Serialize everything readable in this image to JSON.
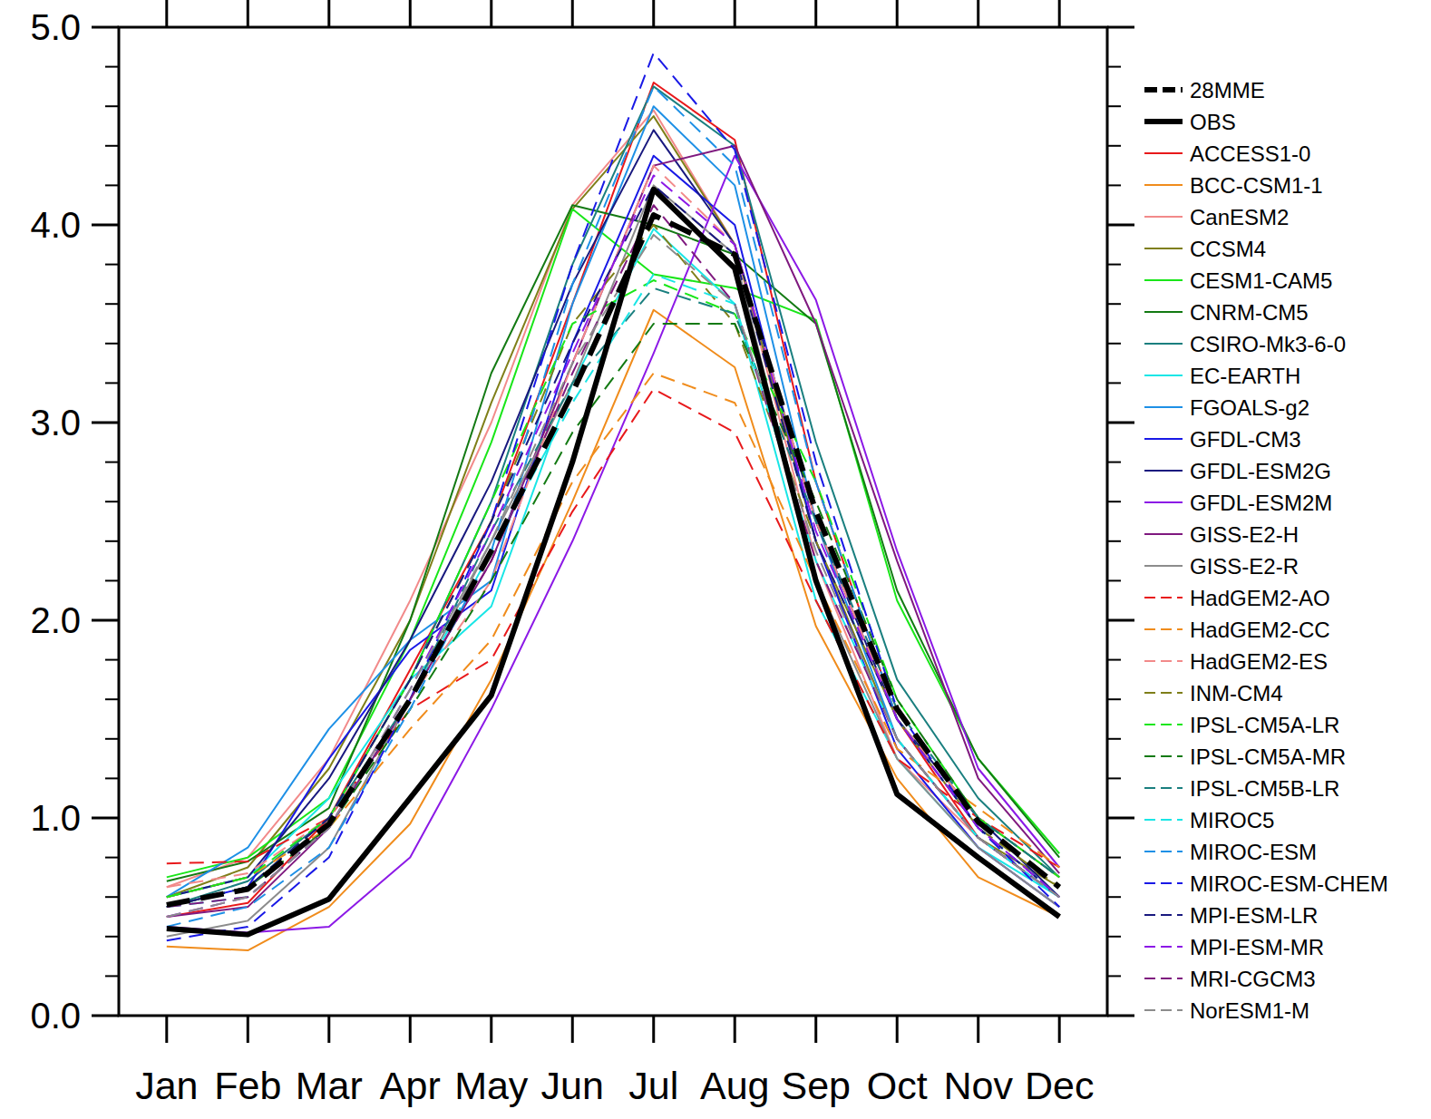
{
  "chart_data": {
    "type": "line",
    "legend": "right",
    "categories": [
      "Jan",
      "Feb",
      "Mar",
      "Apr",
      "May",
      "Jun",
      "Jul",
      "Aug",
      "Sep",
      "Oct",
      "Nov",
      "Dec"
    ],
    "ylim": [
      0,
      5
    ],
    "yticks": [
      {
        "value": 0,
        "label": "0.0"
      },
      {
        "value": 1,
        "label": "1.0"
      },
      {
        "value": 2,
        "label": "2.0"
      },
      {
        "value": 3,
        "label": "3.0"
      },
      {
        "value": 4,
        "label": "4.0"
      },
      {
        "value": 5,
        "label": "5.0"
      }
    ],
    "series": [
      {
        "name": "28MME",
        "color": "#000000",
        "line_style": "dashed",
        "values": [
          0.56,
          0.64,
          0.97,
          1.6,
          2.35,
          3.15,
          4.05,
          3.85,
          2.55,
          1.55,
          0.98,
          0.65
        ]
      },
      {
        "name": "OBS",
        "color": "#000000",
        "line_style": "solid",
        "values": [
          0.44,
          0.41,
          0.59,
          1.1,
          1.62,
          2.8,
          4.18,
          3.78,
          2.2,
          1.12,
          0.8,
          0.5
        ]
      },
      {
        "name": "ACCESS1-0",
        "color": "#e8191b",
        "line_style": "solid",
        "values": [
          0.5,
          0.57,
          1.0,
          1.75,
          2.5,
          3.6,
          4.72,
          4.43,
          2.7,
          1.5,
          0.9,
          0.6
        ]
      },
      {
        "name": "BCC-CSM1-1",
        "color": "#f08c1c",
        "line_style": "solid",
        "values": [
          0.35,
          0.33,
          0.55,
          0.97,
          1.7,
          2.6,
          3.57,
          3.28,
          1.97,
          1.2,
          0.7,
          0.5
        ]
      },
      {
        "name": "CanESM2",
        "color": "#f28a8a",
        "line_style": "solid",
        "values": [
          0.65,
          0.8,
          1.3,
          2.1,
          3.0,
          4.1,
          4.58,
          3.9,
          2.3,
          1.3,
          0.9,
          0.6
        ]
      },
      {
        "name": "CCSM4",
        "color": "#7f7f19",
        "line_style": "solid",
        "values": [
          0.6,
          0.75,
          1.25,
          2.0,
          3.1,
          4.08,
          4.55,
          3.9,
          2.4,
          1.4,
          0.9,
          0.65
        ]
      },
      {
        "name": "CESM1-CAM5",
        "color": "#19e619",
        "line_style": "solid",
        "values": [
          0.7,
          0.8,
          1.1,
          1.9,
          2.9,
          4.08,
          3.75,
          3.68,
          3.52,
          2.1,
          1.3,
          0.82
        ]
      },
      {
        "name": "CNRM-CM5",
        "color": "#137a13",
        "line_style": "solid",
        "values": [
          0.68,
          0.78,
          1.05,
          2.0,
          3.25,
          4.1,
          4.0,
          3.85,
          3.5,
          2.15,
          1.3,
          0.8
        ]
      },
      {
        "name": "CSIRO-Mk3-6-0",
        "color": "#1a7f7f",
        "line_style": "solid",
        "values": [
          0.55,
          0.68,
          1.0,
          1.7,
          2.6,
          3.8,
          4.7,
          4.4,
          2.9,
          1.7,
          1.1,
          0.7
        ]
      },
      {
        "name": "EC-EARTH",
        "color": "#19e6e6",
        "line_style": "solid",
        "values": [
          0.6,
          0.7,
          1.1,
          1.7,
          2.07,
          3.2,
          3.98,
          3.6,
          2.1,
          1.3,
          0.85,
          0.6
        ]
      },
      {
        "name": "FGOALS-g2",
        "color": "#1e90e6",
        "line_style": "solid",
        "values": [
          0.6,
          0.85,
          1.45,
          1.9,
          2.2,
          3.6,
          4.6,
          4.2,
          2.5,
          1.4,
          0.9,
          0.6
        ]
      },
      {
        "name": "GFDL-CM3",
        "color": "#1919e6",
        "line_style": "solid",
        "values": [
          0.55,
          0.65,
          1.3,
          1.85,
          2.15,
          3.4,
          4.35,
          4.0,
          2.4,
          1.35,
          0.85,
          0.55
        ]
      },
      {
        "name": "GFDL-ESM2G",
        "color": "#19197f",
        "line_style": "solid",
        "values": [
          0.6,
          0.7,
          1.2,
          1.9,
          2.7,
          3.7,
          4.48,
          3.9,
          2.5,
          1.5,
          1.0,
          0.6
        ]
      },
      {
        "name": "GFDL-ESM2M",
        "color": "#8c19e6",
        "line_style": "solid",
        "values": [
          0.45,
          0.42,
          0.45,
          0.8,
          1.55,
          2.4,
          3.35,
          4.35,
          3.62,
          2.35,
          1.25,
          0.75
        ]
      },
      {
        "name": "GISS-E2-H",
        "color": "#7f197f",
        "line_style": "solid",
        "values": [
          0.5,
          0.55,
          0.95,
          1.6,
          2.3,
          3.3,
          4.3,
          4.4,
          3.5,
          2.3,
          1.2,
          0.72
        ]
      },
      {
        "name": "GISS-E2-R",
        "color": "#8c8c8c",
        "line_style": "solid",
        "values": [
          0.4,
          0.48,
          0.85,
          1.6,
          2.4,
          3.2,
          4.2,
          3.85,
          2.2,
          1.3,
          0.85,
          0.55
        ]
      },
      {
        "name": "HadGEM2-AO",
        "color": "#e8191b",
        "line_style": "dashed",
        "values": [
          0.77,
          0.78,
          1.0,
          1.55,
          1.8,
          2.55,
          3.17,
          2.95,
          2.1,
          1.3,
          1.0,
          0.75
        ]
      },
      {
        "name": "HadGEM2-CC",
        "color": "#f08c1c",
        "line_style": "dashed",
        "values": [
          0.6,
          0.7,
          0.95,
          1.45,
          1.9,
          2.7,
          3.25,
          3.1,
          2.2,
          1.35,
          1.05,
          0.75
        ]
      },
      {
        "name": "HadGEM2-ES",
        "color": "#f28a8a",
        "line_style": "dashed",
        "values": [
          0.65,
          0.72,
          1.0,
          1.6,
          2.2,
          3.3,
          4.3,
          3.9,
          2.5,
          1.5,
          1.0,
          0.7
        ]
      },
      {
        "name": "INM-CM4",
        "color": "#7f7f19",
        "line_style": "dashed",
        "values": [
          0.55,
          0.65,
          1.0,
          1.7,
          2.5,
          3.5,
          4.0,
          3.5,
          2.4,
          1.5,
          0.95,
          0.65
        ]
      },
      {
        "name": "IPSL-CM5A-LR",
        "color": "#19e619",
        "line_style": "dashed",
        "values": [
          0.6,
          0.7,
          1.0,
          1.7,
          2.6,
          3.5,
          3.72,
          3.55,
          2.7,
          1.6,
          1.0,
          0.7
        ]
      },
      {
        "name": "IPSL-CM5A-MR",
        "color": "#137a13",
        "line_style": "dashed",
        "values": [
          0.55,
          0.65,
          0.95,
          1.55,
          2.2,
          2.95,
          3.5,
          3.5,
          2.6,
          1.6,
          1.0,
          0.7
        ]
      },
      {
        "name": "IPSL-CM5B-LR",
        "color": "#1a7f7f",
        "line_style": "dashed",
        "values": [
          0.55,
          0.65,
          1.0,
          1.6,
          2.45,
          3.2,
          3.68,
          3.55,
          2.5,
          1.55,
          1.0,
          0.7
        ]
      },
      {
        "name": "MIROC5",
        "color": "#19e6e6",
        "line_style": "dashed",
        "values": [
          0.55,
          0.6,
          0.95,
          1.6,
          2.35,
          3.1,
          3.75,
          3.6,
          2.3,
          1.4,
          0.9,
          0.6
        ]
      },
      {
        "name": "MIROC-ESM",
        "color": "#1e90e6",
        "line_style": "dashed",
        "values": [
          0.45,
          0.55,
          0.85,
          1.55,
          2.35,
          3.7,
          4.7,
          4.3,
          2.7,
          1.5,
          0.95,
          0.6
        ]
      },
      {
        "name": "MIROC-ESM-CHEM",
        "color": "#1919e6",
        "line_style": "dashed",
        "values": [
          0.38,
          0.45,
          0.8,
          1.6,
          2.5,
          3.8,
          4.87,
          4.38,
          2.8,
          1.55,
          0.95,
          0.55
        ]
      },
      {
        "name": "MPI-ESM-LR",
        "color": "#19197f",
        "line_style": "dashed",
        "values": [
          0.55,
          0.65,
          1.0,
          1.7,
          2.5,
          3.4,
          4.2,
          3.85,
          2.4,
          1.5,
          0.95,
          0.6
        ]
      },
      {
        "name": "MPI-ESM-MR",
        "color": "#8c19e6",
        "line_style": "dashed",
        "values": [
          0.5,
          0.6,
          0.95,
          1.65,
          2.45,
          3.35,
          4.25,
          3.9,
          2.45,
          1.5,
          0.95,
          0.6
        ]
      },
      {
        "name": "MRI-CGCM3",
        "color": "#7f197f",
        "line_style": "dashed",
        "values": [
          0.55,
          0.6,
          0.95,
          1.6,
          2.3,
          3.25,
          4.1,
          3.6,
          2.3,
          1.4,
          0.9,
          0.6
        ]
      },
      {
        "name": "NorESM1-M",
        "color": "#8c8c8c",
        "line_style": "dashed",
        "values": [
          0.5,
          0.6,
          0.95,
          1.65,
          2.4,
          3.3,
          3.95,
          3.6,
          2.35,
          1.4,
          0.9,
          0.6
        ]
      }
    ]
  }
}
